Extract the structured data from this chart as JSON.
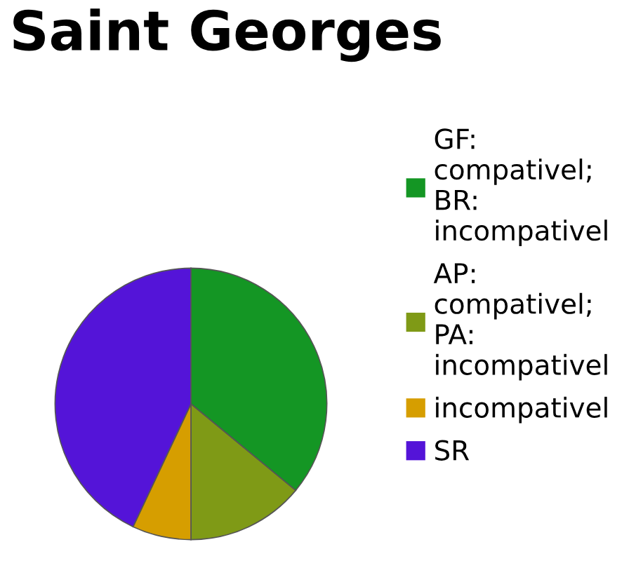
{
  "chart_data": {
    "type": "pie",
    "title": "Saint Georges",
    "categories": [
      "GF: compativel; BR: incompativel",
      "AP: compativel; PA: incompativel",
      "incompativel",
      "SR"
    ],
    "values": [
      36,
      14,
      7,
      43
    ],
    "colors": [
      "#149624",
      "#7f9a16",
      "#d69e00",
      "#5414d8"
    ],
    "legend": "right"
  }
}
